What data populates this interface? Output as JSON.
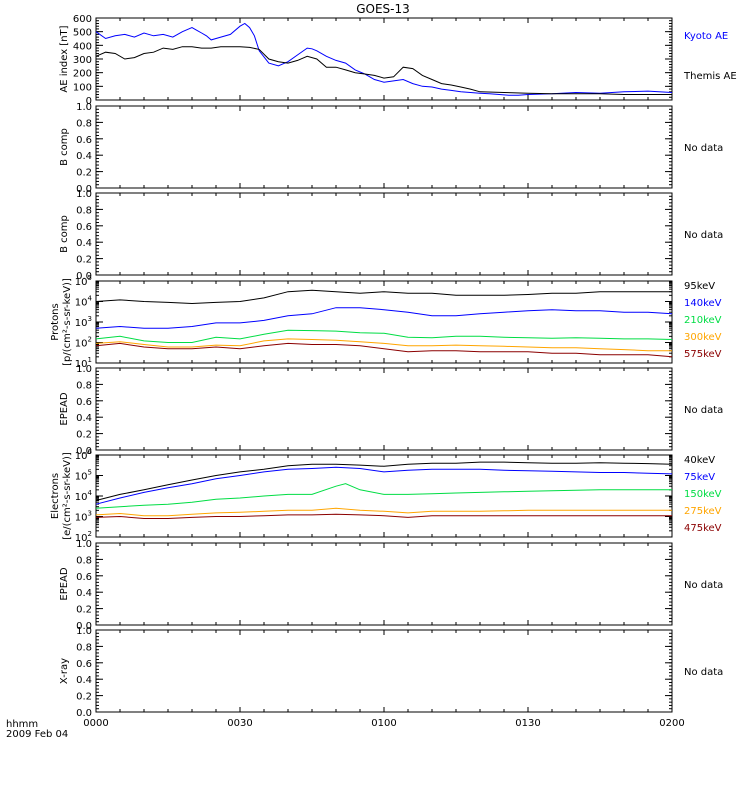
{
  "title": "GOES-13",
  "footer": {
    "line1": "hhmm",
    "line2": "2009 Feb 04"
  },
  "no_data_label": "No data",
  "x_axis": {
    "ticks": [
      0,
      30,
      60,
      90,
      120
    ],
    "tick_labels": [
      "0000",
      "0030",
      "0100",
      "0130",
      "0200"
    ],
    "range_minutes": [
      0,
      120
    ]
  },
  "chart_data": [
    {
      "type": "line",
      "panel": "ae",
      "ylabel": "AE index [nT]",
      "ylim": [
        0,
        600
      ],
      "yticks": [
        0,
        100,
        200,
        300,
        400,
        500,
        600
      ],
      "ytick_labels": [
        "0",
        "100",
        "200",
        "300",
        "400",
        "500",
        "600"
      ],
      "x_unit": "minutes after 0000 UT",
      "series": [
        {
          "name": "Kyoto AE",
          "color": "#0000ff",
          "x": [
            0,
            2,
            4,
            6,
            8,
            10,
            12,
            14,
            16,
            18,
            20,
            21,
            22,
            23,
            24,
            26,
            28,
            30,
            31,
            32,
            33,
            34,
            36,
            38,
            40,
            42,
            44,
            45,
            46,
            48,
            50,
            52,
            54,
            56,
            58,
            60,
            62,
            64,
            66,
            68,
            70,
            72,
            74,
            76,
            78,
            80,
            82,
            84,
            86,
            88,
            90,
            95,
            100,
            105,
            110,
            115,
            120
          ],
          "y": [
            500,
            450,
            470,
            480,
            460,
            490,
            470,
            480,
            460,
            500,
            530,
            510,
            490,
            470,
            440,
            460,
            480,
            540,
            560,
            530,
            470,
            360,
            270,
            250,
            280,
            330,
            380,
            375,
            360,
            320,
            290,
            270,
            220,
            190,
            150,
            130,
            140,
            150,
            120,
            100,
            95,
            80,
            70,
            60,
            55,
            50,
            45,
            40,
            35,
            35,
            40,
            45,
            55,
            50,
            60,
            65,
            55
          ]
        },
        {
          "name": "Themis AE",
          "color": "#000000",
          "x": [
            0,
            2,
            4,
            6,
            8,
            10,
            12,
            14,
            16,
            18,
            20,
            22,
            24,
            26,
            28,
            30,
            32,
            34,
            36,
            38,
            40,
            42,
            44,
            46,
            48,
            50,
            52,
            54,
            56,
            58,
            60,
            62,
            64,
            66,
            68,
            70,
            72,
            74,
            76,
            78,
            80,
            85,
            90,
            95,
            100,
            105,
            110,
            115,
            120
          ],
          "y": [
            320,
            350,
            340,
            300,
            310,
            340,
            350,
            380,
            370,
            390,
            390,
            380,
            380,
            390,
            390,
            390,
            385,
            370,
            300,
            280,
            270,
            290,
            320,
            300,
            240,
            240,
            220,
            200,
            190,
            180,
            160,
            170,
            240,
            230,
            180,
            150,
            120,
            110,
            95,
            80,
            60,
            55,
            50,
            45,
            45,
            45,
            40,
            40,
            40
          ]
        }
      ]
    },
    {
      "type": "line",
      "panel": "empty",
      "ylabel": "B comp",
      "ylim": [
        0,
        1
      ],
      "yticks": [
        0,
        0.2,
        0.4,
        0.6,
        0.8,
        1.0
      ],
      "ytick_labels": [
        "0.0",
        "0.2",
        "0.4",
        "0.6",
        "0.8",
        "1.0"
      ],
      "note": "No data",
      "series": []
    },
    {
      "type": "line",
      "panel": "empty",
      "ylabel": "B comp",
      "ylim": [
        0,
        1
      ],
      "yticks": [
        0,
        0.2,
        0.4,
        0.6,
        0.8,
        1.0
      ],
      "ytick_labels": [
        "0.0",
        "0.2",
        "0.4",
        "0.6",
        "0.8",
        "1.0"
      ],
      "note": "No data",
      "series": []
    },
    {
      "type": "line",
      "panel": "log",
      "ylabel": "Protons",
      "ylabel2": "[p/(cm²-s-sr-keV)]",
      "log_scale": true,
      "ylim_exp": [
        1,
        5
      ],
      "ytick_exps": [
        1,
        2,
        3,
        4,
        5
      ],
      "x_unit": "minutes after 0000 UT",
      "series": [
        {
          "name": "575keV",
          "color": "#8b0000",
          "x": [
            0,
            5,
            10,
            15,
            20,
            25,
            30,
            35,
            40,
            45,
            50,
            55,
            60,
            65,
            70,
            75,
            80,
            85,
            90,
            95,
            100,
            105,
            110,
            115,
            120
          ],
          "y": [
            70,
            90,
            60,
            50,
            50,
            60,
            50,
            70,
            90,
            80,
            80,
            70,
            50,
            35,
            40,
            40,
            35,
            35,
            35,
            30,
            30,
            25,
            25,
            25,
            20
          ]
        },
        {
          "name": "300keV",
          "color": "#ffa500",
          "x": [
            0,
            5,
            10,
            15,
            20,
            25,
            30,
            35,
            40,
            45,
            50,
            55,
            60,
            65,
            70,
            75,
            80,
            85,
            90,
            95,
            100,
            105,
            110,
            115,
            120
          ],
          "y": [
            90,
            110,
            80,
            60,
            60,
            75,
            70,
            120,
            150,
            140,
            130,
            110,
            90,
            70,
            70,
            75,
            70,
            65,
            60,
            55,
            55,
            50,
            45,
            40,
            40
          ]
        },
        {
          "name": "210keV",
          "color": "#00dd44",
          "x": [
            0,
            5,
            10,
            15,
            20,
            25,
            30,
            35,
            40,
            45,
            50,
            55,
            60,
            65,
            70,
            75,
            80,
            85,
            90,
            95,
            100,
            105,
            110,
            115,
            120
          ],
          "y": [
            150,
            200,
            120,
            100,
            100,
            180,
            150,
            250,
            400,
            380,
            360,
            300,
            280,
            180,
            170,
            200,
            200,
            180,
            170,
            160,
            170,
            160,
            150,
            150,
            140
          ]
        },
        {
          "name": "140keV",
          "color": "#0000ff",
          "x": [
            0,
            5,
            10,
            15,
            20,
            25,
            30,
            35,
            40,
            45,
            50,
            55,
            60,
            65,
            70,
            75,
            80,
            85,
            90,
            95,
            100,
            105,
            110,
            115,
            120
          ],
          "y": [
            500,
            600,
            500,
            500,
            600,
            900,
            900,
            1200,
            2000,
            2500,
            5000,
            5000,
            4000,
            3000,
            2000,
            2000,
            2500,
            3000,
            3500,
            4000,
            3500,
            3500,
            3000,
            3000,
            2500
          ]
        },
        {
          "name": "95keV",
          "color": "#000000",
          "x": [
            0,
            5,
            10,
            15,
            20,
            25,
            30,
            35,
            40,
            45,
            50,
            55,
            60,
            65,
            70,
            75,
            80,
            85,
            90,
            95,
            100,
            105,
            110,
            115,
            120
          ],
          "y": [
            10000,
            12000,
            10000,
            9000,
            8000,
            9000,
            10000,
            15000,
            30000,
            35000,
            30000,
            25000,
            30000,
            25000,
            25000,
            20000,
            20000,
            20000,
            22000,
            25000,
            25000,
            30000,
            30000,
            30000,
            30000
          ]
        }
      ]
    },
    {
      "type": "line",
      "panel": "empty",
      "ylabel": "EPEAD",
      "ylim": [
        0,
        1
      ],
      "yticks": [
        0,
        0.2,
        0.4,
        0.6,
        0.8,
        1.0
      ],
      "ytick_labels": [
        "0.0",
        "0.2",
        "0.4",
        "0.6",
        "0.8",
        "1.0"
      ],
      "note": "No data",
      "series": []
    },
    {
      "type": "line",
      "panel": "log",
      "ylabel": "Electrons",
      "ylabel2": "[e/(cm²-s-sr-keV)]",
      "log_scale": true,
      "ylim_exp": [
        2,
        6
      ],
      "ytick_exps": [
        2,
        3,
        4,
        5,
        6
      ],
      "x_unit": "minutes after 0000 UT",
      "series": [
        {
          "name": "475keV",
          "color": "#8b0000",
          "x": [
            0,
            5,
            10,
            15,
            20,
            25,
            30,
            35,
            40,
            45,
            50,
            55,
            60,
            65,
            70,
            75,
            80,
            85,
            90,
            95,
            100,
            105,
            110,
            115,
            120
          ],
          "y": [
            900,
            1000,
            800,
            800,
            900,
            1000,
            1000,
            1100,
            1200,
            1200,
            1300,
            1200,
            1100,
            900,
            1100,
            1100,
            1100,
            1100,
            1100,
            1100,
            1100,
            1100,
            1100,
            1100,
            1100
          ]
        },
        {
          "name": "275keV",
          "color": "#ffa500",
          "x": [
            0,
            5,
            10,
            15,
            20,
            25,
            30,
            35,
            40,
            45,
            50,
            55,
            60,
            65,
            70,
            75,
            80,
            85,
            90,
            95,
            100,
            105,
            110,
            115,
            120
          ],
          "y": [
            1200,
            1400,
            1100,
            1100,
            1300,
            1500,
            1600,
            1800,
            2000,
            2000,
            2500,
            2000,
            1800,
            1500,
            1800,
            1800,
            1800,
            1900,
            2000,
            2000,
            2000,
            2000,
            2000,
            2000,
            2000
          ]
        },
        {
          "name": "150keV",
          "color": "#00dd44",
          "x": [
            0,
            5,
            10,
            15,
            20,
            25,
            30,
            35,
            40,
            45,
            50,
            52,
            55,
            60,
            65,
            70,
            75,
            80,
            85,
            90,
            95,
            100,
            105,
            110,
            115,
            120
          ],
          "y": [
            2500,
            3000,
            3500,
            4000,
            5000,
            7000,
            8000,
            10000,
            12000,
            12000,
            30000,
            40000,
            20000,
            12000,
            12000,
            13000,
            14000,
            15000,
            16000,
            17000,
            18000,
            19000,
            20000,
            20000,
            20000,
            20000
          ]
        },
        {
          "name": "75keV",
          "color": "#0000ff",
          "x": [
            0,
            5,
            10,
            15,
            20,
            25,
            30,
            35,
            40,
            45,
            50,
            55,
            60,
            65,
            70,
            75,
            80,
            85,
            90,
            95,
            100,
            105,
            110,
            115,
            120
          ],
          "y": [
            4000,
            8000,
            15000,
            25000,
            40000,
            70000,
            100000,
            150000,
            200000,
            220000,
            250000,
            220000,
            150000,
            180000,
            200000,
            200000,
            200000,
            180000,
            170000,
            160000,
            150000,
            140000,
            140000,
            130000,
            120000
          ]
        },
        {
          "name": "40keV",
          "color": "#000000",
          "x": [
            0,
            5,
            10,
            15,
            20,
            25,
            30,
            35,
            40,
            45,
            50,
            55,
            60,
            65,
            70,
            75,
            80,
            85,
            90,
            95,
            100,
            105,
            110,
            115,
            120
          ],
          "y": [
            6000,
            12000,
            20000,
            35000,
            60000,
            100000,
            150000,
            200000,
            300000,
            350000,
            350000,
            320000,
            280000,
            350000,
            400000,
            400000,
            450000,
            450000,
            420000,
            400000,
            400000,
            420000,
            400000,
            380000,
            350000
          ]
        }
      ]
    },
    {
      "type": "line",
      "panel": "empty",
      "ylabel": "EPEAD",
      "ylim": [
        0,
        1
      ],
      "yticks": [
        0,
        0.2,
        0.4,
        0.6,
        0.8,
        1.0
      ],
      "ytick_labels": [
        "0.0",
        "0.2",
        "0.4",
        "0.6",
        "0.8",
        "1.0"
      ],
      "note": "No data",
      "series": []
    },
    {
      "type": "line",
      "panel": "empty",
      "ylabel": "X-ray",
      "ylim": [
        0,
        1
      ],
      "yticks": [
        0,
        0.2,
        0.4,
        0.6,
        0.8,
        1.0
      ],
      "ytick_labels": [
        "0.0",
        "0.2",
        "0.4",
        "0.6",
        "0.8",
        "1.0"
      ],
      "note": "No data",
      "series": []
    }
  ]
}
